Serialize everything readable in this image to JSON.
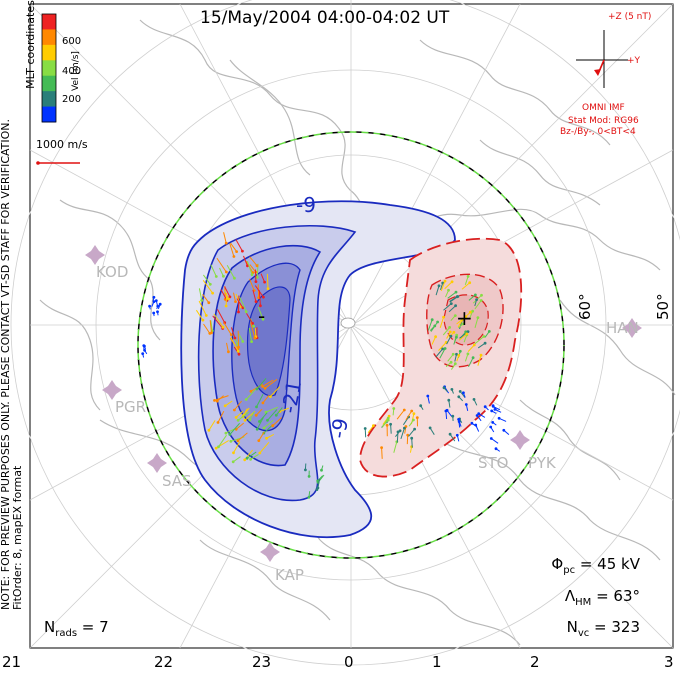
{
  "title": "15/May/2004 04:00-04:02 UT",
  "side_note": {
    "line1": "NOTE: FOR PREVIEW PURPOSES ONLY. PLEASE CONTACT VT-SD STAFF FOR VERIFICATION.",
    "line2": "FitOrder: 8, mapEX format"
  },
  "coordinates_label": "MLT coordinates",
  "colorbar": {
    "label": "Vel [m/s]",
    "ticks": [
      "600",
      "400",
      "200"
    ],
    "colors": [
      "#0033ff",
      "#2a7f7a",
      "#44bb55",
      "#88dd44",
      "#ffcc00",
      "#ff8800",
      "#ee2222"
    ]
  },
  "velocity_scale": "1000 m/s",
  "imf": {
    "bz_label": "+Z (5 nT)",
    "by_label": "+Y",
    "source": "OMNI IMF",
    "model": "Stat Mod: RG96",
    "condition": "Bz-/By-, 0<BT<4"
  },
  "contours": {
    "negative_labels": [
      "-9",
      "-21",
      "-9"
    ],
    "negative_color": "#1a2bbf",
    "positive_color": "#d92020",
    "min_marker": "-",
    "max_marker": "+"
  },
  "latitude_labels": [
    "60°",
    "50°"
  ],
  "stations": [
    "KOD",
    "PGR",
    "SAS",
    "KAP",
    "STO",
    "PYK",
    "HAN"
  ],
  "stats": {
    "phi_pc": "Φpc = 45 kV",
    "phi_base": "Φ",
    "phi_sub": "pc",
    "phi_value": " = 45 kV",
    "lambda_base": "Λ",
    "lambda_sub": "HM",
    "lambda_value": " = 63°",
    "n_base": "N",
    "n_sub": "vc",
    "n_value": " = 323"
  },
  "nrads": {
    "base": "N",
    "sub": "rads",
    "value": " = 7"
  },
  "mlt_ticks": [
    "21",
    "22",
    "23",
    "0",
    "1",
    "2",
    "3"
  ]
}
